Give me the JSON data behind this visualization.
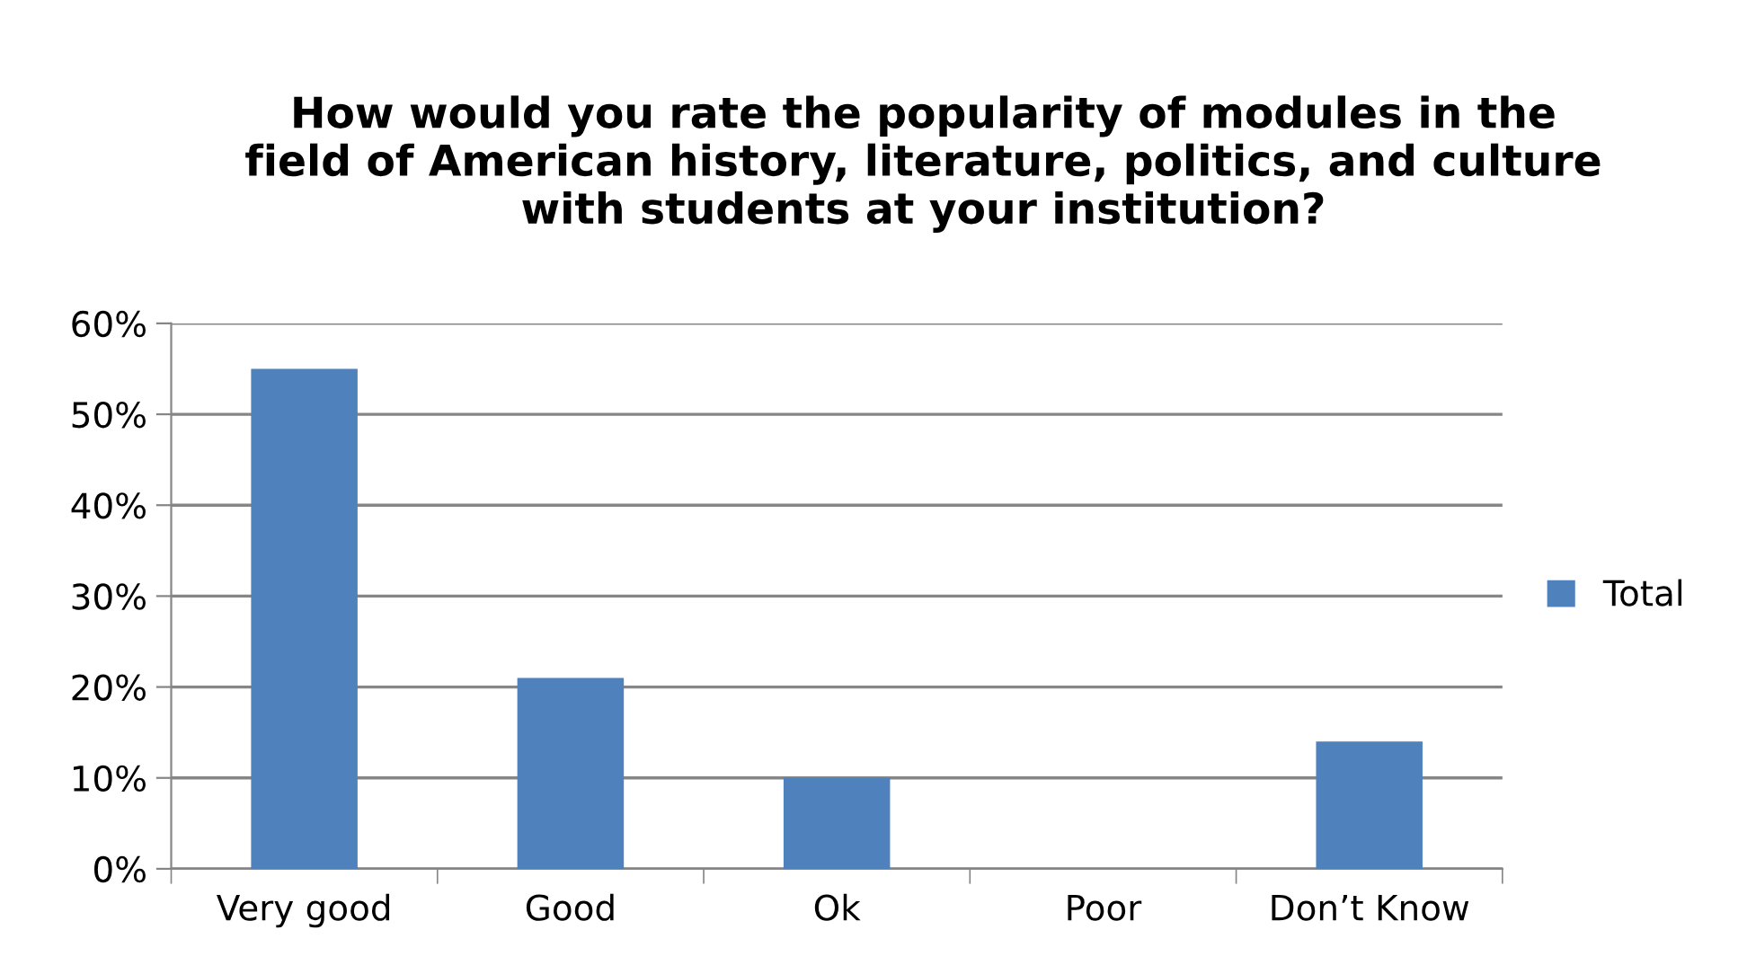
{
  "chart_data": {
    "type": "bar",
    "title": "How would you rate the popularity of modules in the\nfield of American history, literature, politics, and culture\nwith students at your institution?",
    "categories": [
      "Very good",
      "Good",
      "Ok",
      "Poor",
      "Don’t Know"
    ],
    "series": [
      {
        "name": "Total",
        "color": "#4f81bd",
        "values": [
          55,
          21,
          10,
          0,
          14
        ]
      }
    ],
    "ylim": [
      0,
      60
    ],
    "yticks": [
      {
        "value": 0,
        "label": "0%"
      },
      {
        "value": 10,
        "label": "10%"
      },
      {
        "value": 20,
        "label": "20%"
      },
      {
        "value": 30,
        "label": "30%"
      },
      {
        "value": 40,
        "label": "40%"
      },
      {
        "value": 50,
        "label": "50%"
      },
      {
        "value": 60,
        "label": "60%"
      }
    ],
    "grid": "y",
    "legend": "right"
  }
}
